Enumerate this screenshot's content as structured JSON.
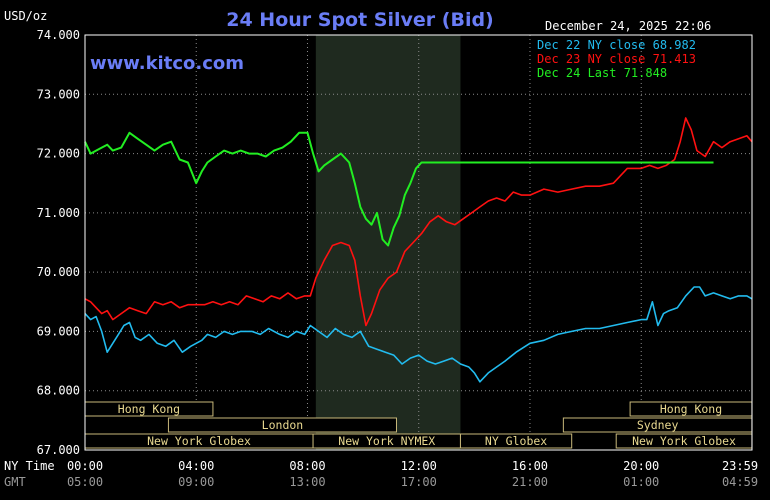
{
  "chart_data": {
    "type": "line",
    "title": "24 Hour Spot Silver (Bid)",
    "unit_label": "USD/oz",
    "timestamp": "December 24, 2025 22:06",
    "watermark": "www.kitco.com",
    "ylim": [
      67.0,
      74.0
    ],
    "y_ticks": [
      "74.000",
      "73.000",
      "72.000",
      "71.000",
      "70.000",
      "69.000",
      "68.000",
      "67.000"
    ],
    "x_row_label_ny": "NY Time",
    "x_row_label_gmt": "GMT",
    "x_ticks_ny": [
      "00:00",
      "04:00",
      "08:00",
      "12:00",
      "16:00",
      "20:00",
      "23:59"
    ],
    "x_ticks_gmt": [
      "05:00",
      "09:00",
      "13:00",
      "17:00",
      "21:00",
      "01:00",
      "04:59"
    ],
    "x_tick_hours": [
      0,
      4,
      8,
      12,
      16,
      20,
      23.983
    ],
    "shaded_session_hours": [
      8.3,
      13.5
    ],
    "legend": [
      {
        "text": "Dec 22 NY close 68.982",
        "color": "#22bbee"
      },
      {
        "text": "Dec 23 NY close 71.413",
        "color": "#ff1111"
      },
      {
        "text": "Dec 24 Last 71.848",
        "color": "#22ee22"
      }
    ],
    "series": [
      {
        "name": "Dec 22 NY close 68.982",
        "color": "#22bbee",
        "x": [
          0,
          0.2,
          0.4,
          0.6,
          0.8,
          1,
          1.2,
          1.4,
          1.6,
          1.8,
          2,
          2.3,
          2.6,
          2.9,
          3.2,
          3.5,
          3.8,
          4,
          4.2,
          4.4,
          4.7,
          5,
          5.3,
          5.6,
          6,
          6.3,
          6.6,
          7,
          7.3,
          7.6,
          7.9,
          8.1,
          8.4,
          8.7,
          9,
          9.3,
          9.6,
          9.9,
          10.2,
          10.5,
          10.8,
          11.1,
          11.4,
          11.7,
          12,
          12.3,
          12.6,
          12.9,
          13.2,
          13.5,
          13.8,
          14,
          14.2,
          14.5,
          14.8,
          15.1,
          15.5,
          16,
          16.5,
          17,
          17.5,
          18,
          18.5,
          19,
          19.5,
          20,
          20.2,
          20.4,
          20.6,
          20.8,
          21,
          21.3,
          21.6,
          21.9,
          22.1,
          22.3,
          22.6,
          22.9,
          23.2,
          23.5,
          23.8,
          23.98
        ],
        "y": [
          69.3,
          69.2,
          69.25,
          69.0,
          68.65,
          68.8,
          68.95,
          69.1,
          69.15,
          68.9,
          68.85,
          68.95,
          68.8,
          68.75,
          68.85,
          68.65,
          68.75,
          68.8,
          68.85,
          68.95,
          68.9,
          69.0,
          68.95,
          69.0,
          69.0,
          68.95,
          69.05,
          68.95,
          68.9,
          69.0,
          68.95,
          69.1,
          69.0,
          68.9,
          69.05,
          68.95,
          68.9,
          69.0,
          68.75,
          68.7,
          68.65,
          68.6,
          68.45,
          68.55,
          68.6,
          68.5,
          68.45,
          68.5,
          68.55,
          68.45,
          68.4,
          68.3,
          68.15,
          68.3,
          68.4,
          68.5,
          68.65,
          68.8,
          68.85,
          68.95,
          69.0,
          69.05,
          69.05,
          69.1,
          69.15,
          69.2,
          69.2,
          69.5,
          69.1,
          69.3,
          69.35,
          69.4,
          69.6,
          69.75,
          69.75,
          69.6,
          69.65,
          69.6,
          69.55,
          69.6,
          69.6,
          69.55
        ]
      },
      {
        "name": "Dec 23 NY close 71.413",
        "color": "#ff1111",
        "x": [
          0,
          0.2,
          0.4,
          0.6,
          0.8,
          1,
          1.3,
          1.6,
          1.9,
          2.2,
          2.5,
          2.8,
          3.1,
          3.4,
          3.7,
          4,
          4.3,
          4.6,
          4.9,
          5.2,
          5.5,
          5.8,
          6.1,
          6.4,
          6.7,
          7,
          7.3,
          7.6,
          7.9,
          8.1,
          8.3,
          8.6,
          8.9,
          9.2,
          9.5,
          9.7,
          9.9,
          10.1,
          10.3,
          10.6,
          10.9,
          11.2,
          11.5,
          11.8,
          12.1,
          12.4,
          12.7,
          13,
          13.3,
          13.6,
          13.9,
          14.2,
          14.5,
          14.8,
          15.1,
          15.4,
          15.7,
          16,
          16.5,
          17,
          17.5,
          18,
          18.5,
          19,
          19.5,
          20,
          20.3,
          20.6,
          20.9,
          21.2,
          21.4,
          21.6,
          21.8,
          22,
          22.3,
          22.6,
          22.9,
          23.2,
          23.5,
          23.8,
          23.98
        ],
        "y": [
          69.55,
          69.5,
          69.4,
          69.3,
          69.35,
          69.2,
          69.3,
          69.4,
          69.35,
          69.3,
          69.5,
          69.45,
          69.5,
          69.4,
          69.45,
          69.45,
          69.45,
          69.5,
          69.45,
          69.5,
          69.45,
          69.6,
          69.55,
          69.5,
          69.6,
          69.55,
          69.65,
          69.55,
          69.6,
          69.6,
          69.9,
          70.2,
          70.45,
          70.5,
          70.45,
          70.2,
          69.6,
          69.1,
          69.3,
          69.7,
          69.9,
          70.0,
          70.35,
          70.5,
          70.65,
          70.85,
          70.95,
          70.85,
          70.8,
          70.9,
          71.0,
          71.1,
          71.2,
          71.25,
          71.2,
          71.35,
          71.3,
          71.3,
          71.4,
          71.35,
          71.4,
          71.45,
          71.45,
          71.5,
          71.75,
          71.75,
          71.8,
          71.75,
          71.8,
          71.9,
          72.2,
          72.6,
          72.4,
          72.05,
          71.95,
          72.2,
          72.1,
          72.2,
          72.25,
          72.3,
          72.2
        ]
      },
      {
        "name": "Dec 24 Last 71.848",
        "color": "#22ee22",
        "x": [
          0,
          0.2,
          0.4,
          0.6,
          0.8,
          1,
          1.3,
          1.6,
          1.9,
          2.2,
          2.5,
          2.8,
          3.1,
          3.4,
          3.7,
          4,
          4.2,
          4.4,
          4.7,
          5,
          5.3,
          5.6,
          5.9,
          6.2,
          6.5,
          6.8,
          7.1,
          7.4,
          7.7,
          8,
          8.2,
          8.4,
          8.6,
          8.9,
          9.2,
          9.5,
          9.7,
          9.9,
          10.1,
          10.3,
          10.5,
          10.7,
          10.9,
          11.1,
          11.3,
          11.5,
          11.7,
          11.9,
          12.1,
          12.3,
          12.5,
          13,
          14,
          15,
          16,
          17,
          18,
          19,
          20,
          21,
          22,
          22.6
        ],
        "y": [
          72.2,
          72.0,
          72.05,
          72.1,
          72.15,
          72.05,
          72.1,
          72.35,
          72.25,
          72.15,
          72.05,
          72.15,
          72.2,
          71.9,
          71.85,
          71.5,
          71.7,
          71.85,
          71.95,
          72.05,
          72.0,
          72.05,
          72.0,
          72.0,
          71.95,
          72.05,
          72.1,
          72.2,
          72.35,
          72.35,
          72.0,
          71.7,
          71.8,
          71.9,
          72.0,
          71.85,
          71.5,
          71.1,
          70.9,
          70.8,
          71.0,
          70.55,
          70.45,
          70.75,
          70.95,
          71.3,
          71.5,
          71.75,
          71.85,
          71.85,
          71.85,
          71.85,
          71.85,
          71.85,
          71.85,
          71.85,
          71.85,
          71.85,
          71.85,
          71.85,
          71.85,
          71.85
        ]
      }
    ],
    "market_sessions": [
      {
        "label": "Hong Kong",
        "start": 0.0,
        "end": 4.6,
        "row": 0
      },
      {
        "label": "London",
        "start": 3.0,
        "end": 11.2,
        "row": 1
      },
      {
        "label": "New York Globex",
        "start": 0.0,
        "end": 8.2,
        "row": 2
      },
      {
        "label": "New York NYMEX",
        "start": 8.2,
        "end": 13.5,
        "row": 2
      },
      {
        "label": "NY Globex",
        "start": 13.5,
        "end": 17.5,
        "row": 2
      },
      {
        "label": "Hong Kong",
        "start": 19.6,
        "end": 23.98,
        "row": 0
      },
      {
        "label": "Sydney",
        "start": 17.2,
        "end": 23.98,
        "row": 1
      },
      {
        "label": "New York Globex",
        "start": 19.1,
        "end": 23.98,
        "row": 2
      }
    ]
  }
}
